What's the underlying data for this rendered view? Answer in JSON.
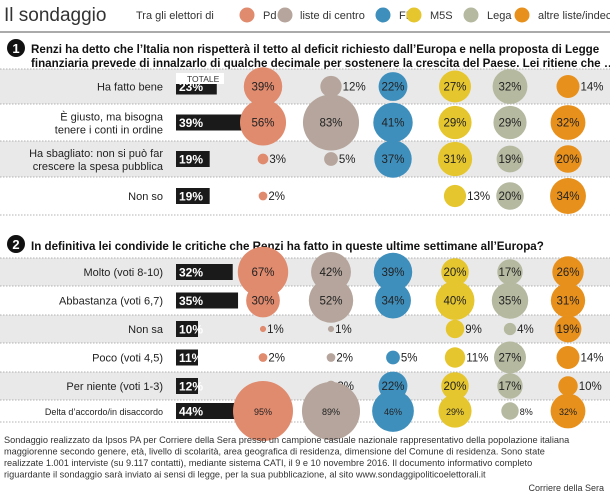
{
  "title": "Il sondaggio",
  "legend_intro": "Tra gli elettori di",
  "colors": {
    "band": "#e9e9e9",
    "total_bar": "#1a1a1a",
    "grid": "#9a9a9a"
  },
  "chart_data": {
    "type": "bubble-table",
    "legend_placement": "top",
    "groups": [
      {
        "name": "Pd",
        "color": "#e08a6e"
      },
      {
        "name": "liste di centro",
        "color": "#b5a59c"
      },
      {
        "name": "FI",
        "color": "#3f8fbd"
      },
      {
        "name": "M5S",
        "color": "#e6c62e"
      },
      {
        "name": "Lega",
        "color": "#b5b9a0"
      },
      {
        "name": "altre liste/indecisi/non voto",
        "color": "#e8901c"
      }
    ],
    "total_header": "TOTALE",
    "questions": [
      {
        "number": "1",
        "text_lines": [
          "Renzi ha detto che l’Italia non rispetterà il tetto al deficit richiesto dall’Europa e nella proposta di Legge",
          "finanziaria prevede di innalzarlo di qualche decimale per sostenere la crescita del Paese. Lei ritiene che …"
        ],
        "rows": [
          {
            "label": [
              "Ha fatto bene"
            ],
            "total": 23,
            "total_label": "23%",
            "values": [
              39,
              12,
              22,
              27,
              32,
              14
            ],
            "labels": [
              "39%",
              "12%",
              "22%",
              "27%",
              "32%",
              "14%"
            ]
          },
          {
            "label": [
              "È giusto, ma bisogna",
              "tenere i conti in ordine"
            ],
            "total": 39,
            "total_label": "39%",
            "values": [
              56,
              83,
              41,
              29,
              29,
              32
            ],
            "labels": [
              "56%",
              "83%",
              "41%",
              "29%",
              "29%",
              "32%"
            ]
          },
          {
            "label": [
              "Ha sbagliato: non si può far",
              "crescere la spesa pubblica"
            ],
            "total": 19,
            "total_label": "19%",
            "values": [
              3,
              5,
              37,
              31,
              19,
              20
            ],
            "labels": [
              "3%",
              "5%",
              "37%",
              "31%",
              "19%",
              "20%"
            ]
          },
          {
            "label": [
              "Non so"
            ],
            "total": 19,
            "total_label": "19%",
            "values": [
              2,
              0,
              0,
              13,
              20,
              34
            ],
            "labels": [
              "2%",
              "",
              "",
              "13%",
              "20%",
              "34%"
            ]
          }
        ]
      },
      {
        "number": "2",
        "text_lines": [
          "In definitiva lei condivide le critiche che Renzi ha fatto in queste ultime settimane all’Europa?"
        ],
        "rows": [
          {
            "label": [
              "Molto (voti 8-10)"
            ],
            "total": 32,
            "total_label": "32%",
            "values": [
              67,
              42,
              39,
              20,
              17,
              26
            ],
            "labels": [
              "67%",
              "42%",
              "39%",
              "20%",
              "17%",
              "26%"
            ]
          },
          {
            "label": [
              "Abbastanza (voti 6,7)"
            ],
            "total": 35,
            "total_label": "35%",
            "values": [
              30,
              52,
              34,
              40,
              35,
              31
            ],
            "labels": [
              "30%",
              "52%",
              "34%",
              "40%",
              "35%",
              "31%"
            ]
          },
          {
            "label": [
              "Non sa"
            ],
            "total": 10,
            "total_label": "10%",
            "values": [
              1,
              1,
              0,
              9,
              4,
              19
            ],
            "labels": [
              "1%",
              "1%",
              "",
              "9%",
              "4%",
              "19%"
            ]
          },
          {
            "label": [
              "Poco (voti 4,5)"
            ],
            "total": 11,
            "total_label": "11%",
            "values": [
              2,
              2,
              5,
              11,
              27,
              14
            ],
            "labels": [
              "2%",
              "2%",
              "5%",
              "11%",
              "27%",
              "14%"
            ]
          },
          {
            "label": [
              "Per niente (voti 1-3)"
            ],
            "total": 12,
            "total_label": "12%",
            "values": [
              0,
              3,
              22,
              20,
              17,
              10
            ],
            "labels": [
              "",
              "3%",
              "22%",
              "20%",
              "17%",
              "10%"
            ]
          },
          {
            "label": [
              "Delta d’accordo/in disaccordo"
            ],
            "total": 44,
            "total_label": "44%",
            "values": [
              95,
              89,
              46,
              29,
              8,
              32
            ],
            "labels": [
              "95%",
              "89%",
              "46%",
              "29%",
              "8%",
              "32%"
            ]
          }
        ]
      }
    ]
  },
  "footer": {
    "note_lines": [
      "Sondaggio realizzato da Ipsos PA per Corriere della Sera presso un campione casuale nazionale rappresentativo della popolazione italiana",
      "maggiorenne secondo genere, età, livello di scolarità, area geografica di residenza, dimensione del Comune di residenza. Sono state",
      "realizzate 1.001 interviste (su 9.117 contatti), mediante sistema CATI, il 9 e 10 novembre 2016. Il documento informativo completo",
      "riguardante il sondaggio sarà inviato ai sensi di legge,  per la sua pubblicazione, al sito www.sondaggipoliticoelettorali.it"
    ],
    "source": "Corriere della Sera"
  }
}
